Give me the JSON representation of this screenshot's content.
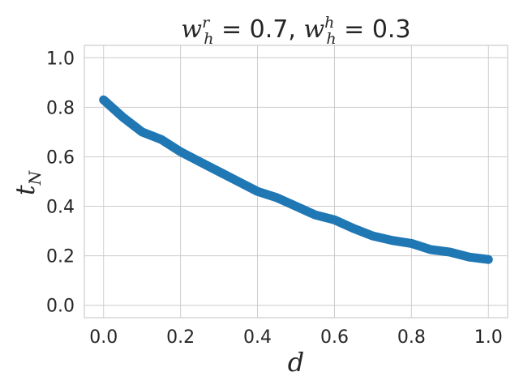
{
  "chart_data": {
    "type": "line",
    "title": "w_h^r = 0.7, w_h^h = 0.3",
    "title_parts": {
      "w1": "w",
      "w1_sup": "r",
      "w1_sub": "h",
      "eq1": " = 0.7, ",
      "w2": "w",
      "w2_sup": "h",
      "w2_sub": "h",
      "eq2": " = 0.3"
    },
    "xlabel": "d",
    "ylabel": "t",
    "ylabel_sub": "N",
    "xlim": [
      -0.05,
      1.05
    ],
    "ylim": [
      -0.05,
      1.05
    ],
    "xticks": [
      0.0,
      0.2,
      0.4,
      0.6,
      0.8,
      1.0
    ],
    "xtick_labels": [
      "0.0",
      "0.2",
      "0.4",
      "0.6",
      "0.8",
      "1.0"
    ],
    "yticks": [
      0.0,
      0.2,
      0.4,
      0.6,
      0.8,
      1.0
    ],
    "ytick_labels": [
      "0.0",
      "0.2",
      "0.4",
      "0.6",
      "0.8",
      "1.0"
    ],
    "grid": true,
    "series": [
      {
        "color": "#1f77b4",
        "x": [
          0.0,
          0.05,
          0.1,
          0.15,
          0.2,
          0.25,
          0.3,
          0.35,
          0.4,
          0.45,
          0.5,
          0.55,
          0.6,
          0.65,
          0.7,
          0.75,
          0.8,
          0.85,
          0.9,
          0.95,
          1.0
        ],
        "y": [
          0.83,
          0.76,
          0.7,
          0.67,
          0.62,
          0.58,
          0.54,
          0.5,
          0.46,
          0.435,
          0.4,
          0.365,
          0.345,
          0.31,
          0.28,
          0.262,
          0.25,
          0.225,
          0.215,
          0.195,
          0.185
        ]
      }
    ]
  }
}
